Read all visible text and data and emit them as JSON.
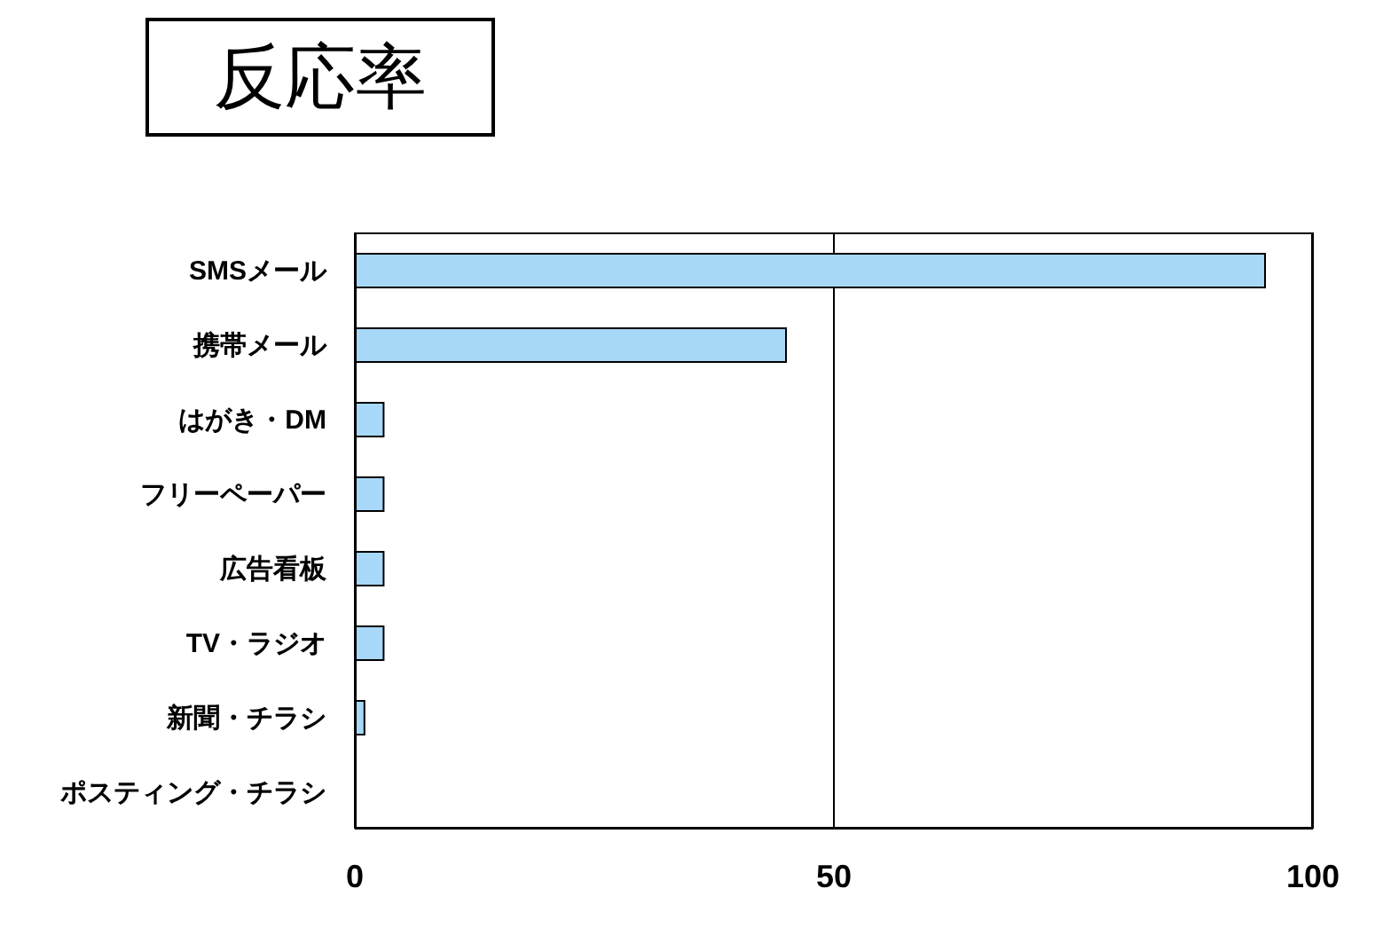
{
  "chart_data": {
    "type": "bar",
    "orientation": "horizontal",
    "title": "反応率",
    "categories": [
      "SMSメール",
      "携帯メール",
      "はがき・DM",
      "フリーペーパー",
      "広告看板",
      "TV・ラジオ",
      "新聞・チラシ",
      "ポスティング・チラシ"
    ],
    "values": [
      95,
      45,
      3,
      3,
      3,
      3,
      1,
      0
    ],
    "color": "#a8d8f8",
    "xlim": [
      0,
      100
    ],
    "xticks": [
      0,
      50,
      100
    ],
    "grid": "x"
  }
}
